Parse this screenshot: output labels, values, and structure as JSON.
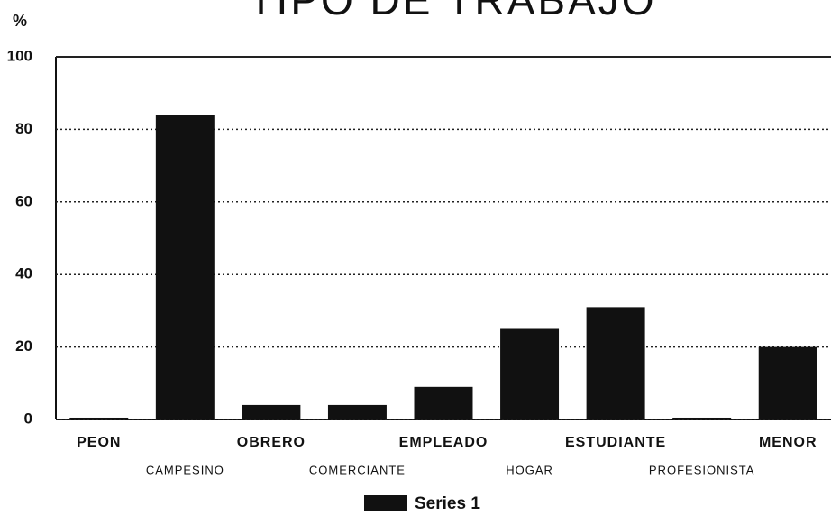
{
  "chart_data": {
    "type": "bar",
    "title": "TIPO DE TRABAJO",
    "y_label": "%",
    "categories": [
      "PEON",
      "CAMPESINO",
      "OBRERO",
      "COMERCIANTE",
      "EMPLEADO",
      "HOGAR",
      "ESTUDIANTE",
      "PROFESIONISTA",
      "MENOR"
    ],
    "series": [
      {
        "name": "Series 1",
        "color": "#111111",
        "values": [
          0.5,
          84,
          4,
          4,
          9,
          25,
          31,
          0.5,
          20
        ]
      }
    ],
    "ylim": [
      0,
      100
    ],
    "yticks": [
      0,
      20,
      40,
      60,
      80,
      100
    ],
    "grid": true,
    "legend": "bottom"
  }
}
